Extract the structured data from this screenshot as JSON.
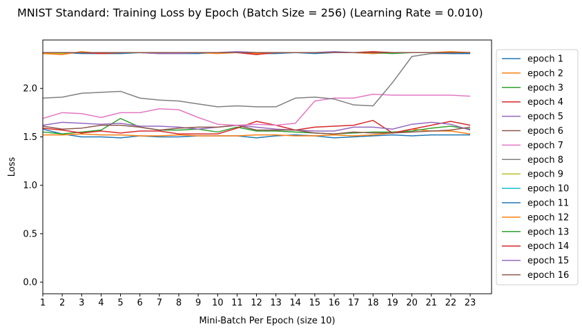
{
  "chart_data": {
    "type": "line",
    "title": "MNIST Standard: Training Loss by Epoch (Batch Size = 256) (Learning Rate = 0.010)",
    "xlabel": "Mini-Batch Per Epoch (size 10)",
    "ylabel": "Loss",
    "xlim": [
      1,
      24.1
    ],
    "ylim": [
      -0.12,
      2.5
    ],
    "xticks": [
      1,
      2,
      3,
      4,
      5,
      6,
      7,
      8,
      9,
      10,
      11,
      12,
      13,
      14,
      15,
      16,
      17,
      18,
      19,
      20,
      21,
      22,
      23
    ],
    "yticks": [
      0.0,
      0.5,
      1.0,
      1.5,
      2.0
    ],
    "ytick_labels": [
      "0.0",
      "0.5",
      "1.0",
      "1.5",
      "2.0"
    ],
    "grid": false,
    "legend_position": "outside-right",
    "x": [
      1,
      2,
      3,
      4,
      5,
      6,
      7,
      8,
      9,
      10,
      11,
      12,
      13,
      14,
      15,
      16,
      17,
      18,
      19,
      20,
      21,
      22,
      23
    ],
    "series": [
      {
        "name": "epoch 1",
        "color": "#1f77b4",
        "values": [
          1.58,
          1.53,
          1.5,
          1.5,
          1.49,
          1.51,
          1.5,
          1.5,
          1.51,
          1.51,
          1.51,
          1.49,
          1.51,
          1.52,
          1.51,
          1.49,
          1.5,
          1.51,
          1.52,
          1.51,
          1.52,
          1.52,
          1.52
        ]
      },
      {
        "name": "epoch 2",
        "color": "#ff7f0e",
        "values": [
          1.52,
          1.52,
          1.53,
          1.52,
          1.52,
          1.51,
          1.51,
          1.52,
          1.51,
          1.51,
          1.51,
          1.52,
          1.52,
          1.51,
          1.51,
          1.52,
          1.51,
          1.52,
          1.54,
          1.58,
          1.56,
          1.56,
          1.53
        ]
      },
      {
        "name": "epoch 3",
        "color": "#2ca02c",
        "values": [
          1.55,
          1.53,
          1.55,
          1.57,
          1.69,
          1.6,
          1.57,
          1.57,
          1.58,
          1.55,
          1.6,
          1.56,
          1.56,
          1.55,
          1.54,
          1.53,
          1.54,
          1.55,
          1.55,
          1.56,
          1.59,
          1.61,
          1.58
        ]
      },
      {
        "name": "epoch 4",
        "color": "#d62728",
        "values": [
          1.59,
          1.57,
          1.54,
          1.56,
          1.54,
          1.56,
          1.56,
          1.53,
          1.53,
          1.53,
          1.59,
          1.66,
          1.62,
          1.57,
          1.6,
          1.61,
          1.62,
          1.67,
          1.54,
          1.58,
          1.62,
          1.66,
          1.62
        ]
      },
      {
        "name": "epoch 5",
        "color": "#9467bd",
        "values": [
          1.62,
          1.65,
          1.64,
          1.63,
          1.64,
          1.61,
          1.61,
          1.6,
          1.58,
          1.6,
          1.62,
          1.6,
          1.58,
          1.57,
          1.56,
          1.56,
          1.6,
          1.6,
          1.58,
          1.63,
          1.65,
          1.63,
          1.57
        ]
      },
      {
        "name": "epoch 6",
        "color": "#8c564b",
        "values": [
          1.61,
          1.58,
          1.59,
          1.62,
          1.62,
          1.6,
          1.57,
          1.59,
          1.6,
          1.6,
          1.62,
          1.57,
          1.57,
          1.57,
          1.54,
          1.53,
          1.55,
          1.54,
          1.54,
          1.55,
          1.56,
          1.57,
          1.6
        ]
      },
      {
        "name": "epoch 7",
        "color": "#e377c2",
        "values": [
          1.69,
          1.75,
          1.74,
          1.7,
          1.75,
          1.75,
          1.79,
          1.78,
          1.7,
          1.63,
          1.62,
          1.63,
          1.62,
          1.64,
          1.87,
          1.9,
          1.9,
          1.94,
          1.93,
          1.93,
          1.93,
          1.93,
          1.92
        ]
      },
      {
        "name": "epoch 8",
        "color": "#7f7f7f",
        "values": [
          1.9,
          1.91,
          1.95,
          1.96,
          1.97,
          1.9,
          1.88,
          1.87,
          1.84,
          1.81,
          1.82,
          1.81,
          1.81,
          1.9,
          1.91,
          1.89,
          1.83,
          1.82,
          2.06,
          2.33,
          2.36,
          2.36,
          2.36
        ]
      },
      {
        "name": "epoch 9",
        "color": "#bcbd22",
        "values": [
          2.36,
          2.36,
          2.37,
          2.36,
          2.36,
          2.37,
          2.37,
          2.37,
          2.37,
          2.37,
          2.37,
          2.37,
          2.37,
          2.37,
          2.37,
          2.37,
          2.37,
          2.37,
          2.37,
          2.37,
          2.37,
          2.37,
          2.37
        ]
      },
      {
        "name": "epoch 10",
        "color": "#17becf",
        "values": [
          2.37,
          2.37,
          2.37,
          2.37,
          2.37,
          2.37,
          2.37,
          2.37,
          2.37,
          2.37,
          2.37,
          2.37,
          2.37,
          2.37,
          2.37,
          2.37,
          2.37,
          2.37,
          2.37,
          2.37,
          2.37,
          2.37,
          2.37
        ]
      },
      {
        "name": "epoch 11",
        "color": "#1f77b4",
        "values": [
          2.37,
          2.37,
          2.36,
          2.36,
          2.36,
          2.37,
          2.36,
          2.36,
          2.36,
          2.37,
          2.37,
          2.36,
          2.36,
          2.37,
          2.36,
          2.37,
          2.37,
          2.36,
          2.37,
          2.37,
          2.37,
          2.36,
          2.36
        ]
      },
      {
        "name": "epoch 12",
        "color": "#ff7f0e",
        "values": [
          2.36,
          2.35,
          2.38,
          2.36,
          2.37,
          2.37,
          2.36,
          2.37,
          2.37,
          2.36,
          2.37,
          2.36,
          2.37,
          2.37,
          2.37,
          2.37,
          2.37,
          2.36,
          2.37,
          2.37,
          2.37,
          2.38,
          2.37
        ]
      },
      {
        "name": "epoch 13",
        "color": "#2ca02c",
        "values": [
          2.37,
          2.37,
          2.37,
          2.37,
          2.37,
          2.37,
          2.37,
          2.37,
          2.37,
          2.37,
          2.37,
          2.37,
          2.37,
          2.37,
          2.37,
          2.37,
          2.37,
          2.37,
          2.36,
          2.37,
          2.37,
          2.37,
          2.37
        ]
      },
      {
        "name": "epoch 14",
        "color": "#d62728",
        "values": [
          2.37,
          2.37,
          2.37,
          2.36,
          2.37,
          2.37,
          2.37,
          2.37,
          2.37,
          2.37,
          2.37,
          2.35,
          2.37,
          2.37,
          2.37,
          2.37,
          2.37,
          2.38,
          2.37,
          2.37,
          2.37,
          2.37,
          2.37
        ]
      },
      {
        "name": "epoch 15",
        "color": "#9467bd",
        "values": [
          2.37,
          2.37,
          2.37,
          2.37,
          2.37,
          2.37,
          2.36,
          2.36,
          2.37,
          2.37,
          2.38,
          2.37,
          2.37,
          2.37,
          2.37,
          2.38,
          2.37,
          2.37,
          2.37,
          2.37,
          2.37,
          2.37,
          2.37
        ]
      },
      {
        "name": "epoch 16",
        "color": "#8c564b",
        "values": [
          2.37,
          2.37,
          2.37,
          2.37,
          2.37,
          2.37,
          2.37,
          2.37,
          2.37,
          2.37,
          2.37,
          2.37,
          2.37,
          2.37,
          2.37,
          2.37,
          2.37,
          2.37,
          2.37,
          2.37,
          2.37,
          2.37,
          2.37
        ]
      }
    ]
  }
}
